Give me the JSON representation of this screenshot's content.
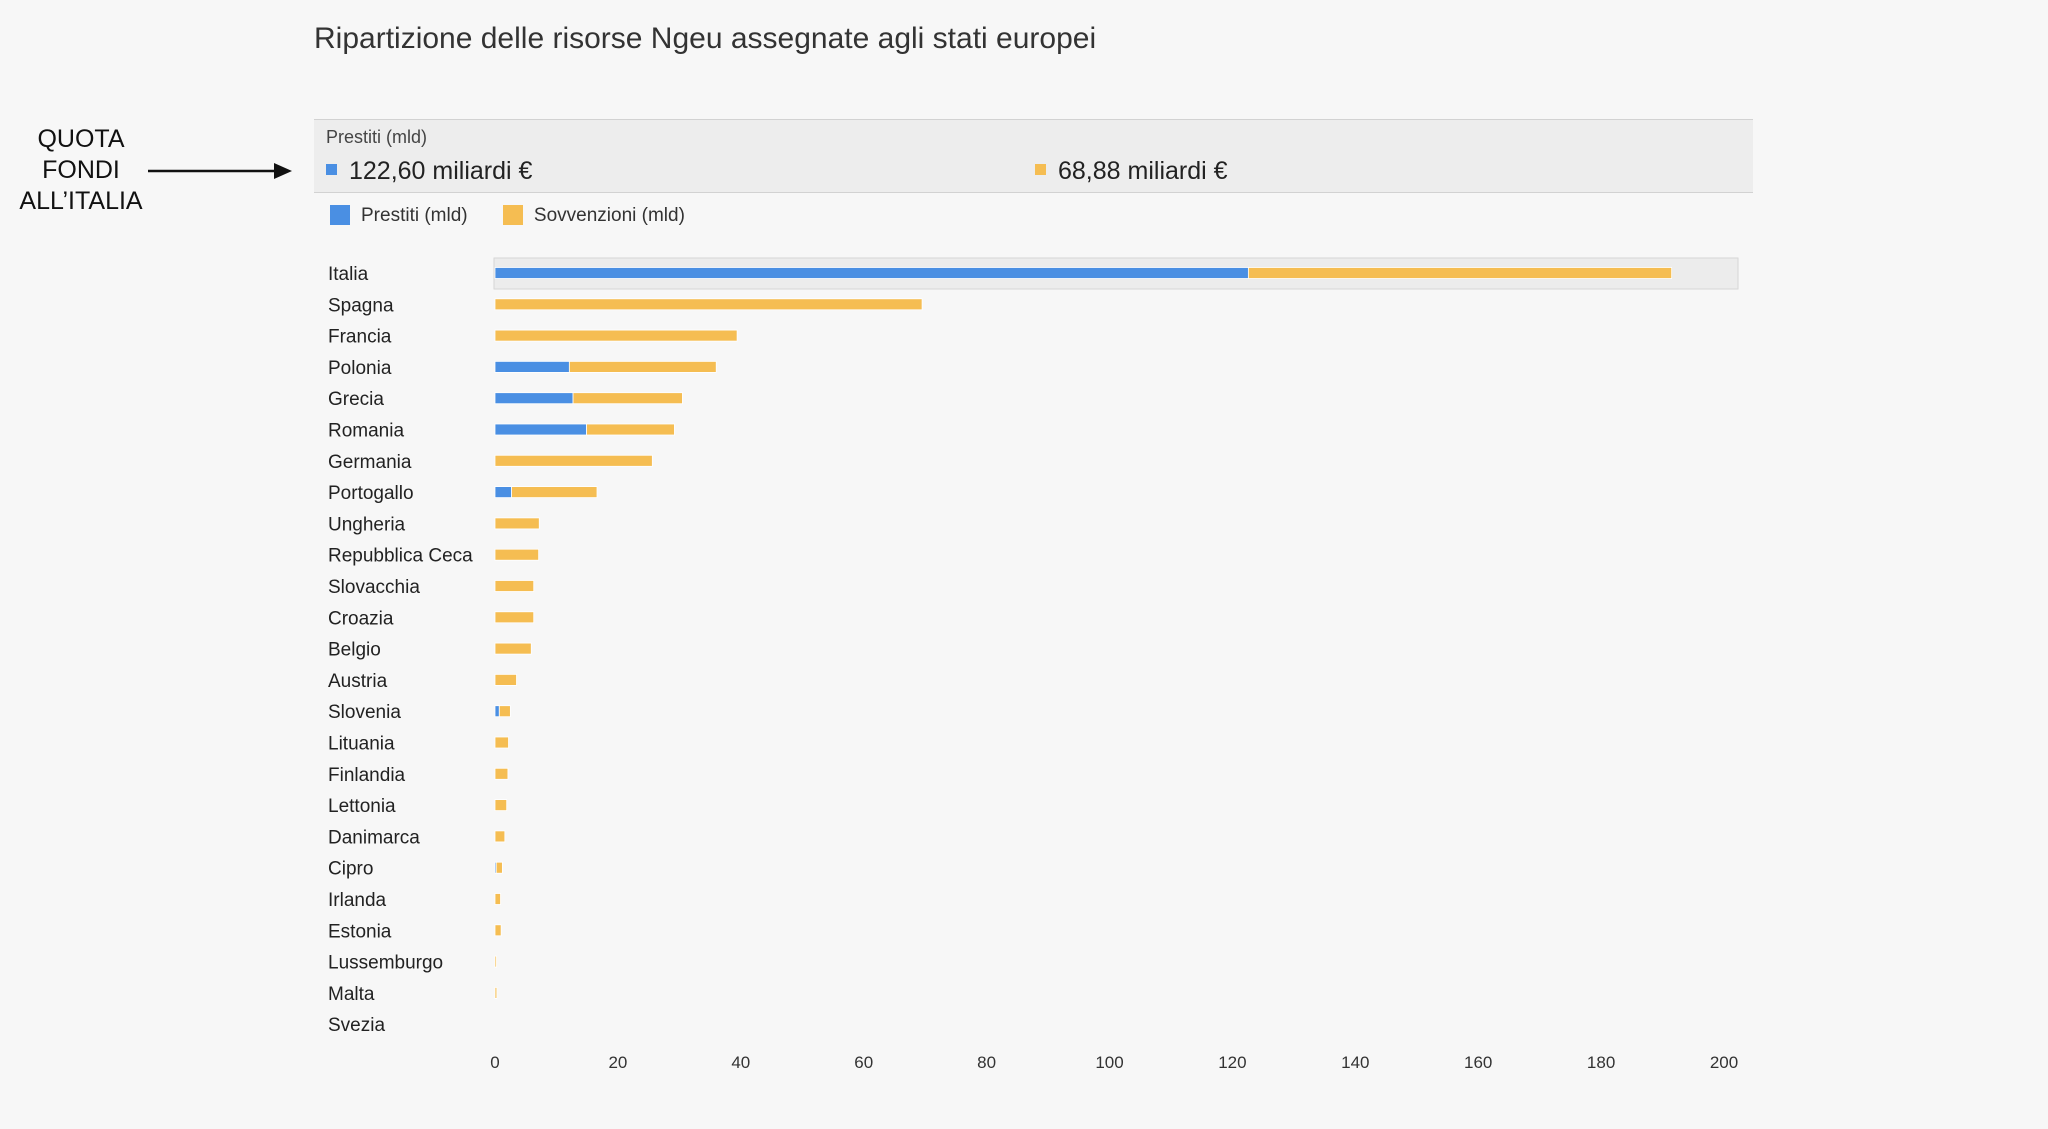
{
  "title": "Ripartizione delle risorse Ngeu assegnate agli stati europei",
  "annotation": {
    "lines": [
      "QUOTA",
      "FONDI",
      "ALL’ITALIA"
    ]
  },
  "tooltip": {
    "header": "Prestiti (mld)",
    "prestiti_value": "122,60 miliardi €",
    "sovvenzioni_value": "68,88 miliardi €"
  },
  "legend": {
    "prestiti": "Prestiti (mld)",
    "sovvenzioni": "Sovvenzioni (mld)"
  },
  "colors": {
    "prestiti": "#4a8fe3",
    "sovvenzioni": "#f5bd52"
  },
  "chart_data": {
    "type": "bar",
    "orientation": "horizontal",
    "stacked": true,
    "title": "Ripartizione delle risorse Ngeu assegnate agli stati europei",
    "categories": [
      "Italia",
      "Spagna",
      "Francia",
      "Polonia",
      "Grecia",
      "Romania",
      "Germania",
      "Portogallo",
      "Ungheria",
      "Repubblica Ceca",
      "Slovacchia",
      "Croazia",
      "Belgio",
      "Austria",
      "Slovenia",
      "Lituania",
      "Finlandia",
      "Lettonia",
      "Danimarca",
      "Cipro",
      "Irlanda",
      "Estonia",
      "Lussemburgo",
      "Malta",
      "Svezia"
    ],
    "series": [
      {
        "name": "Prestiti (mld)",
        "color": "#4a8fe3",
        "values": [
          122.6,
          0,
          0,
          12.1,
          12.7,
          14.9,
          0,
          2.7,
          0,
          0,
          0,
          0,
          0,
          0,
          0.7,
          0,
          0,
          0,
          0,
          0.2,
          0,
          0,
          0,
          0,
          0
        ]
      },
      {
        "name": "Sovvenzioni (mld)",
        "color": "#f5bd52",
        "values": [
          68.88,
          69.5,
          39.4,
          23.9,
          17.8,
          14.3,
          25.6,
          13.9,
          7.2,
          7.1,
          6.3,
          6.3,
          5.9,
          3.5,
          1.8,
          2.2,
          2.1,
          1.9,
          1.6,
          1.0,
          0.9,
          1.0,
          0.1,
          0.3,
          0.0
        ]
      }
    ],
    "xlim": [
      0,
      200
    ],
    "xticks": [
      0,
      20,
      40,
      60,
      80,
      100,
      120,
      140,
      160,
      180,
      200
    ],
    "highlighted_category": "Italia",
    "legend_position": "top-left",
    "grid": false
  }
}
